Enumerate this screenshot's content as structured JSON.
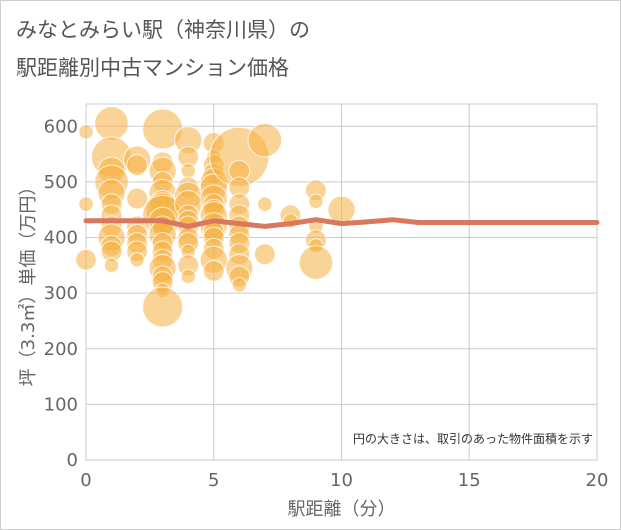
{
  "title_line1": "みなとみらい駅（神奈川県）の",
  "title_line2": "駅距離別中古マンション価格",
  "chart_data": {
    "type": "scatter",
    "xlabel": "駅距離（分）",
    "ylabel": "坪（3.3㎡）単価（万円）",
    "xlim": [
      0,
      20
    ],
    "ylim": [
      0,
      640
    ],
    "xticks": [
      "0",
      "5",
      "10",
      "15",
      "20"
    ],
    "yticks": [
      "0",
      "100",
      "200",
      "300",
      "400",
      "500",
      "600"
    ],
    "note": "円の大きさは、取引のあった物件面積を示す",
    "bubble_color": "#f5b041",
    "line_color": "#d9775f",
    "points": [
      [
        0,
        590,
        1
      ],
      [
        0,
        460,
        1
      ],
      [
        0,
        360,
        2
      ],
      [
        1,
        605,
        4
      ],
      [
        1,
        545,
        5
      ],
      [
        1,
        520,
        3
      ],
      [
        1,
        500,
        4
      ],
      [
        1,
        480,
        3
      ],
      [
        1,
        460,
        2
      ],
      [
        1,
        440,
        2
      ],
      [
        1,
        420,
        2
      ],
      [
        1,
        400,
        3
      ],
      [
        1,
        385,
        2
      ],
      [
        1,
        375,
        2
      ],
      [
        1,
        350,
        1
      ],
      [
        2,
        540,
        3
      ],
      [
        2,
        530,
        2
      ],
      [
        2,
        470,
        2
      ],
      [
        2,
        420,
        2
      ],
      [
        2,
        405,
        2
      ],
      [
        2,
        390,
        2
      ],
      [
        2,
        375,
        2
      ],
      [
        2,
        360,
        1
      ],
      [
        3,
        595,
        5
      ],
      [
        3,
        535,
        2
      ],
      [
        3,
        520,
        3
      ],
      [
        3,
        500,
        2
      ],
      [
        3,
        480,
        3
      ],
      [
        3,
        460,
        3
      ],
      [
        3,
        450,
        4
      ],
      [
        3,
        440,
        5
      ],
      [
        3,
        430,
        3
      ],
      [
        3,
        420,
        2
      ],
      [
        3,
        405,
        3
      ],
      [
        3,
        390,
        2
      ],
      [
        3,
        375,
        2
      ],
      [
        3,
        360,
        2
      ],
      [
        3,
        345,
        3
      ],
      [
        3,
        330,
        2
      ],
      [
        3,
        320,
        2
      ],
      [
        3,
        305,
        1
      ],
      [
        3,
        275,
        5
      ],
      [
        4,
        575,
        3
      ],
      [
        4,
        545,
        2
      ],
      [
        4,
        520,
        1
      ],
      [
        4,
        490,
        2
      ],
      [
        4,
        475,
        3
      ],
      [
        4,
        460,
        3
      ],
      [
        4,
        440,
        2
      ],
      [
        4,
        430,
        2
      ],
      [
        4,
        420,
        2
      ],
      [
        4,
        400,
        2
      ],
      [
        4,
        390,
        2
      ],
      [
        4,
        375,
        1
      ],
      [
        4,
        350,
        2
      ],
      [
        4,
        330,
        1
      ],
      [
        5,
        570,
        2
      ],
      [
        5,
        545,
        1
      ],
      [
        5,
        530,
        2
      ],
      [
        5,
        515,
        2
      ],
      [
        5,
        500,
        3
      ],
      [
        5,
        490,
        3
      ],
      [
        5,
        470,
        3
      ],
      [
        5,
        460,
        2
      ],
      [
        5,
        450,
        2
      ],
      [
        5,
        440,
        3
      ],
      [
        5,
        420,
        3
      ],
      [
        5,
        410,
        2
      ],
      [
        5,
        400,
        2
      ],
      [
        5,
        380,
        2
      ],
      [
        5,
        360,
        3
      ],
      [
        5,
        340,
        2
      ],
      [
        6,
        545,
        8
      ],
      [
        6,
        520,
        2
      ],
      [
        6,
        490,
        2
      ],
      [
        6,
        460,
        2
      ],
      [
        6,
        440,
        2
      ],
      [
        6,
        420,
        2
      ],
      [
        6,
        405,
        2
      ],
      [
        6,
        390,
        2
      ],
      [
        6,
        370,
        2
      ],
      [
        6,
        345,
        3
      ],
      [
        6,
        330,
        2
      ],
      [
        6,
        315,
        1
      ],
      [
        7,
        575,
        4
      ],
      [
        7,
        460,
        1
      ],
      [
        7,
        370,
        2
      ],
      [
        8,
        440,
        2
      ],
      [
        8,
        430,
        1
      ],
      [
        9,
        485,
        2
      ],
      [
        9,
        465,
        1
      ],
      [
        9,
        420,
        1
      ],
      [
        9,
        395,
        2
      ],
      [
        9,
        385,
        1
      ],
      [
        9,
        355,
        4
      ],
      [
        10,
        450,
        3
      ]
    ],
    "trend": [
      [
        0,
        430
      ],
      [
        1,
        430
      ],
      [
        2,
        430
      ],
      [
        3,
        430
      ],
      [
        4,
        420
      ],
      [
        5,
        430
      ],
      [
        6,
        425
      ],
      [
        7,
        420
      ],
      [
        8,
        425
      ],
      [
        9,
        432
      ],
      [
        10,
        425
      ],
      [
        11,
        428
      ],
      [
        12,
        432
      ],
      [
        13,
        427
      ],
      [
        14,
        427
      ],
      [
        15,
        427
      ],
      [
        16,
        427
      ],
      [
        17,
        427
      ],
      [
        18,
        427
      ],
      [
        19,
        427
      ],
      [
        20,
        427
      ]
    ]
  }
}
